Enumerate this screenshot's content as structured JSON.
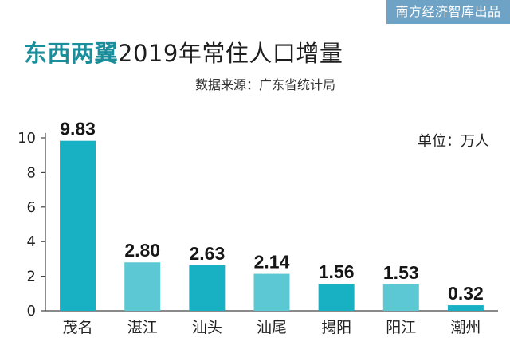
{
  "header": {
    "brand": "南方经济智库出品",
    "title_accent": "东西两翼",
    "title_rest": "2019年常住人口增量",
    "source": "数据来源：广东省统计局",
    "unit": "单位：万人"
  },
  "colors": {
    "brand_bg": "#6ea3c6",
    "accent": "#1b8e9c",
    "bar_dark": "#18b1c3",
    "bar_light": "#5cc8d4"
  },
  "chart_data": {
    "type": "bar",
    "title": "东西两翼2019年常住人口增量",
    "xlabel": "",
    "ylabel": "单位：万人",
    "categories": [
      "茂名",
      "湛江",
      "汕头",
      "汕尾",
      "揭阳",
      "阳江",
      "潮州"
    ],
    "values": [
      9.83,
      2.8,
      2.63,
      2.14,
      1.56,
      1.53,
      0.32
    ],
    "value_labels": [
      "9.83",
      "2.80",
      "2.63",
      "2.14",
      "1.56",
      "1.53",
      "0.32"
    ],
    "bar_shades": [
      "dark",
      "light",
      "dark",
      "light",
      "dark",
      "light",
      "dark"
    ],
    "ylim": [
      0,
      10
    ],
    "yticks": [
      0,
      2,
      4,
      6,
      8,
      10
    ]
  }
}
